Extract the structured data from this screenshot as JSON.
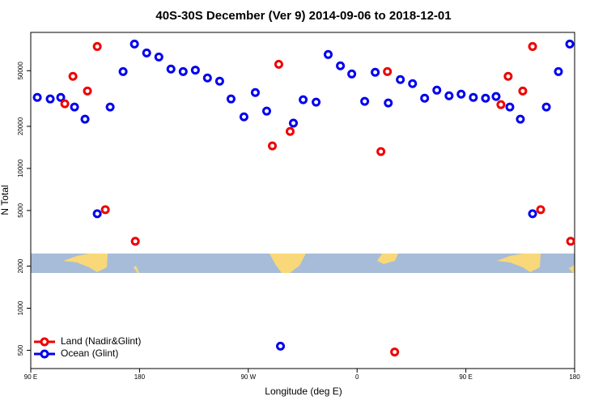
{
  "chart_data": {
    "type": "scatter",
    "title": "40S-30S December (Ver 9)   2014-09-06 to 2018-12-01",
    "x_label": "Longitude (deg E)",
    "y_label": "N Total",
    "yscale": "log",
    "legend": "bottom-left",
    "xlim": [
      90,
      540
    ],
    "ylim": [
      370,
      94000
    ],
    "xticks": [
      {
        "value": 90,
        "label": "90 E"
      },
      180,
      {
        "value": 270,
        "label": "90 W"
      },
      {
        "value": 360,
        "label": "0"
      },
      {
        "value": 450,
        "label": "90 E"
      },
      {
        "value": 540,
        "label": "180"
      }
    ],
    "yticks": [
      500,
      1000,
      2000,
      5000,
      10000,
      20000,
      50000
    ],
    "series": [
      {
        "name": "Land (Nadir&Glint)",
        "color": "#ee0000",
        "x": [
          118.2,
          124.9,
          136.9,
          145,
          151.7,
          176.5,
          289.9,
          295.2,
          304.6,
          379.7,
          385.1,
          391.1,
          479,
          485,
          497.1,
          505.2,
          511.9,
          536.7
        ],
        "values": [
          29000,
          45600,
          35800,
          74500,
          5070,
          3010,
          14500,
          55600,
          18400,
          13200,
          49300,
          486,
          28600,
          45600,
          35800,
          74500,
          5070,
          3010
        ]
      },
      {
        "name": "Ocean (Glint)",
        "color": "#0000ee",
        "x": [
          95.4,
          106.1,
          114.8,
          126.2,
          134.9,
          145,
          155.7,
          166.4,
          175.8,
          185.9,
          196,
          206,
          216.1,
          226.2,
          236.2,
          246.3,
          255.7,
          266.4,
          275.8,
          285.2,
          296.6,
          307.3,
          315.4,
          326.1,
          336.1,
          346.2,
          355.6,
          366.3,
          375,
          385.8,
          395.8,
          405.9,
          415.9,
          426,
          436.1,
          446.1,
          456.2,
          466.3,
          475,
          486.4,
          495.1,
          505.2,
          516.6,
          526.6,
          536
        ],
        "values": [
          32200,
          31400,
          32200,
          27500,
          22500,
          4740,
          27500,
          49300,
          77600,
          67000,
          62700,
          51400,
          49300,
          50500,
          44400,
          42100,
          31400,
          23400,
          34900,
          25700,
          535,
          21100,
          31000,
          29800,
          65300,
          54200,
          47400,
          30200,
          48700,
          29400,
          43200,
          40400,
          31800,
          36300,
          33100,
          34000,
          32200,
          31800,
          32700,
          27500,
          22500,
          4740,
          27500,
          49300,
          77600
        ]
      }
    ]
  }
}
